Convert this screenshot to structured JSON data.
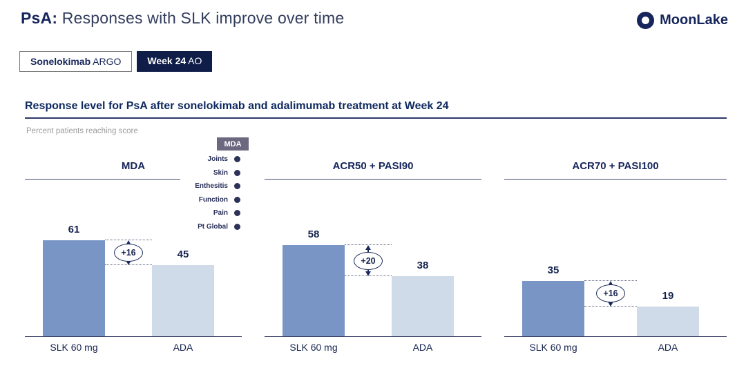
{
  "header": {
    "title_bold": "PsA:",
    "title_rest": "Responses with SLK improve over time",
    "logo_text": "MoonLake"
  },
  "tabs": [
    {
      "bold": "Sonelokimab",
      "rest": "ARGO",
      "active": false
    },
    {
      "bold": "Week 24",
      "rest": "AO",
      "active": true
    }
  ],
  "section": {
    "heading": "Response level for PsA after sonelokimab and adalimumab treatment at Week 24",
    "caption": "Percent patients reaching score"
  },
  "legend": {
    "title": "MDA",
    "items": [
      "Joints",
      "Skin",
      "Enthesitis",
      "Function",
      "Pain",
      "Pt Global"
    ]
  },
  "chart_data": [
    {
      "type": "bar",
      "title": "MDA",
      "categories": [
        "SLK 60 mg",
        "ADA"
      ],
      "values": [
        61,
        45
      ],
      "diff_label": "+16",
      "ylabel": "Percent patients reaching score",
      "ylim": [
        0,
        100
      ]
    },
    {
      "type": "bar",
      "title": "ACR50 + PASI90",
      "categories": [
        "SLK 60 mg",
        "ADA"
      ],
      "values": [
        58,
        38
      ],
      "diff_label": "+20",
      "ylabel": "Percent patients reaching score",
      "ylim": [
        0,
        100
      ]
    },
    {
      "type": "bar",
      "title": "ACR70 + PASI100",
      "categories": [
        "SLK 60 mg",
        "ADA"
      ],
      "values": [
        35,
        19
      ],
      "diff_label": "+16",
      "ylabel": "Percent patients reaching score",
      "ylim": [
        0,
        100
      ]
    }
  ],
  "colors": {
    "navy": "#16255b",
    "slk_bar": "#7995c5",
    "ada_bar": "#cfdbe9",
    "legend_header_bg": "#6b6880",
    "legend_dot": "#2c3158",
    "axis": "#3a4166"
  }
}
